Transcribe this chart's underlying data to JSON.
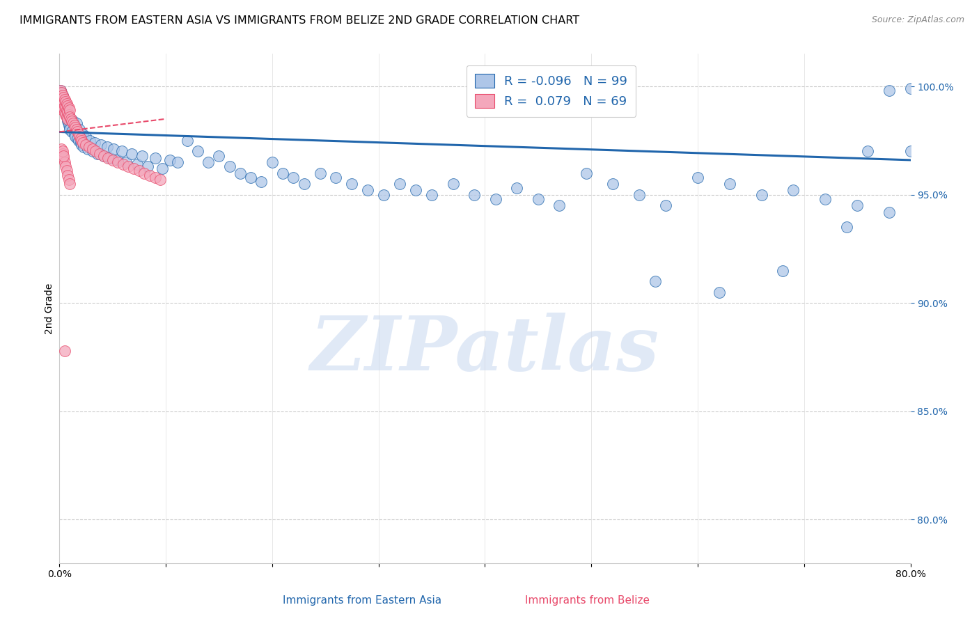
{
  "title": "IMMIGRANTS FROM EASTERN ASIA VS IMMIGRANTS FROM BELIZE 2ND GRADE CORRELATION CHART",
  "source": "Source: ZipAtlas.com",
  "xlabel_blue": "Immigrants from Eastern Asia",
  "xlabel_pink": "Immigrants from Belize",
  "ylabel": "2nd Grade",
  "xmin": 0.0,
  "xmax": 0.8,
  "ymin": 0.78,
  "ymax": 1.015,
  "yticks": [
    0.8,
    0.85,
    0.9,
    0.95,
    1.0
  ],
  "ytick_labels": [
    "80.0%",
    "85.0%",
    "90.0%",
    "95.0%",
    "100.0%"
  ],
  "xticks": [
    0.0,
    0.1,
    0.2,
    0.3,
    0.4,
    0.5,
    0.6,
    0.7,
    0.8
  ],
  "xtick_labels": [
    "0.0%",
    "",
    "",
    "",
    "",
    "",
    "",
    "",
    "80.0%"
  ],
  "blue_R": "-0.096",
  "blue_N": "99",
  "pink_R": "0.079",
  "pink_N": "69",
  "blue_color": "#aec6e8",
  "pink_color": "#f4a7bb",
  "blue_line_color": "#2166ac",
  "pink_line_color": "#e8496a",
  "watermark": "ZIPatlas",
  "watermark_color": "#c8d8f0",
  "blue_scatter_x": [
    0.001,
    0.002,
    0.002,
    0.003,
    0.003,
    0.004,
    0.004,
    0.005,
    0.005,
    0.006,
    0.006,
    0.007,
    0.007,
    0.008,
    0.008,
    0.009,
    0.009,
    0.01,
    0.01,
    0.011,
    0.012,
    0.013,
    0.014,
    0.015,
    0.016,
    0.017,
    0.018,
    0.019,
    0.02,
    0.021,
    0.022,
    0.023,
    0.025,
    0.027,
    0.029,
    0.031,
    0.033,
    0.036,
    0.039,
    0.042,
    0.045,
    0.048,
    0.051,
    0.055,
    0.059,
    0.063,
    0.068,
    0.073,
    0.078,
    0.083,
    0.09,
    0.097,
    0.104,
    0.111,
    0.12,
    0.13,
    0.14,
    0.15,
    0.16,
    0.17,
    0.18,
    0.19,
    0.2,
    0.21,
    0.22,
    0.23,
    0.245,
    0.26,
    0.275,
    0.29,
    0.305,
    0.32,
    0.335,
    0.35,
    0.37,
    0.39,
    0.41,
    0.43,
    0.45,
    0.47,
    0.495,
    0.52,
    0.545,
    0.57,
    0.6,
    0.63,
    0.66,
    0.69,
    0.72,
    0.75,
    0.78,
    0.8,
    0.56,
    0.62,
    0.68,
    0.74,
    0.76,
    0.78,
    0.8
  ],
  "blue_scatter_y": [
    0.998,
    0.997,
    0.995,
    0.996,
    0.993,
    0.994,
    0.992,
    0.991,
    0.99,
    0.989,
    0.988,
    0.987,
    0.986,
    0.985,
    0.984,
    0.983,
    0.982,
    0.981,
    0.98,
    0.985,
    0.979,
    0.984,
    0.978,
    0.977,
    0.983,
    0.976,
    0.975,
    0.98,
    0.974,
    0.973,
    0.978,
    0.972,
    0.977,
    0.971,
    0.975,
    0.97,
    0.974,
    0.969,
    0.973,
    0.968,
    0.972,
    0.967,
    0.971,
    0.966,
    0.97,
    0.965,
    0.969,
    0.964,
    0.968,
    0.963,
    0.967,
    0.962,
    0.966,
    0.965,
    0.975,
    0.97,
    0.965,
    0.968,
    0.963,
    0.96,
    0.958,
    0.956,
    0.965,
    0.96,
    0.958,
    0.955,
    0.96,
    0.958,
    0.955,
    0.952,
    0.95,
    0.955,
    0.952,
    0.95,
    0.955,
    0.95,
    0.948,
    0.953,
    0.948,
    0.945,
    0.96,
    0.955,
    0.95,
    0.945,
    0.958,
    0.955,
    0.95,
    0.952,
    0.948,
    0.945,
    0.942,
    0.97,
    0.91,
    0.905,
    0.915,
    0.935,
    0.97,
    0.998,
    0.999
  ],
  "pink_scatter_x": [
    0.001,
    0.001,
    0.002,
    0.002,
    0.002,
    0.003,
    0.003,
    0.003,
    0.003,
    0.004,
    0.004,
    0.004,
    0.005,
    0.005,
    0.005,
    0.006,
    0.006,
    0.006,
    0.007,
    0.007,
    0.007,
    0.008,
    0.008,
    0.008,
    0.009,
    0.009,
    0.01,
    0.01,
    0.011,
    0.012,
    0.013,
    0.014,
    0.015,
    0.016,
    0.017,
    0.018,
    0.019,
    0.02,
    0.021,
    0.022,
    0.025,
    0.028,
    0.031,
    0.034,
    0.038,
    0.042,
    0.046,
    0.05,
    0.055,
    0.06,
    0.065,
    0.07,
    0.075,
    0.08,
    0.085,
    0.09,
    0.095,
    0.002,
    0.003,
    0.004,
    0.005,
    0.006,
    0.007,
    0.008,
    0.009,
    0.01,
    0.003,
    0.004,
    0.005
  ],
  "pink_scatter_y": [
    0.998,
    0.995,
    0.997,
    0.994,
    0.992,
    0.996,
    0.993,
    0.991,
    0.989,
    0.995,
    0.992,
    0.99,
    0.994,
    0.991,
    0.988,
    0.993,
    0.99,
    0.987,
    0.992,
    0.989,
    0.986,
    0.991,
    0.988,
    0.985,
    0.99,
    0.987,
    0.989,
    0.986,
    0.985,
    0.984,
    0.983,
    0.982,
    0.981,
    0.98,
    0.979,
    0.978,
    0.977,
    0.976,
    0.975,
    0.974,
    0.973,
    0.972,
    0.971,
    0.97,
    0.969,
    0.968,
    0.967,
    0.966,
    0.965,
    0.964,
    0.963,
    0.962,
    0.961,
    0.96,
    0.959,
    0.958,
    0.957,
    0.971,
    0.969,
    0.967,
    0.965,
    0.963,
    0.961,
    0.959,
    0.957,
    0.955,
    0.97,
    0.968,
    0.878
  ],
  "blue_trend_x": [
    0.0,
    0.8
  ],
  "blue_trend_y": [
    0.979,
    0.966
  ],
  "pink_trend_x": [
    0.0,
    0.1
  ],
  "pink_trend_y": [
    0.979,
    0.985
  ]
}
